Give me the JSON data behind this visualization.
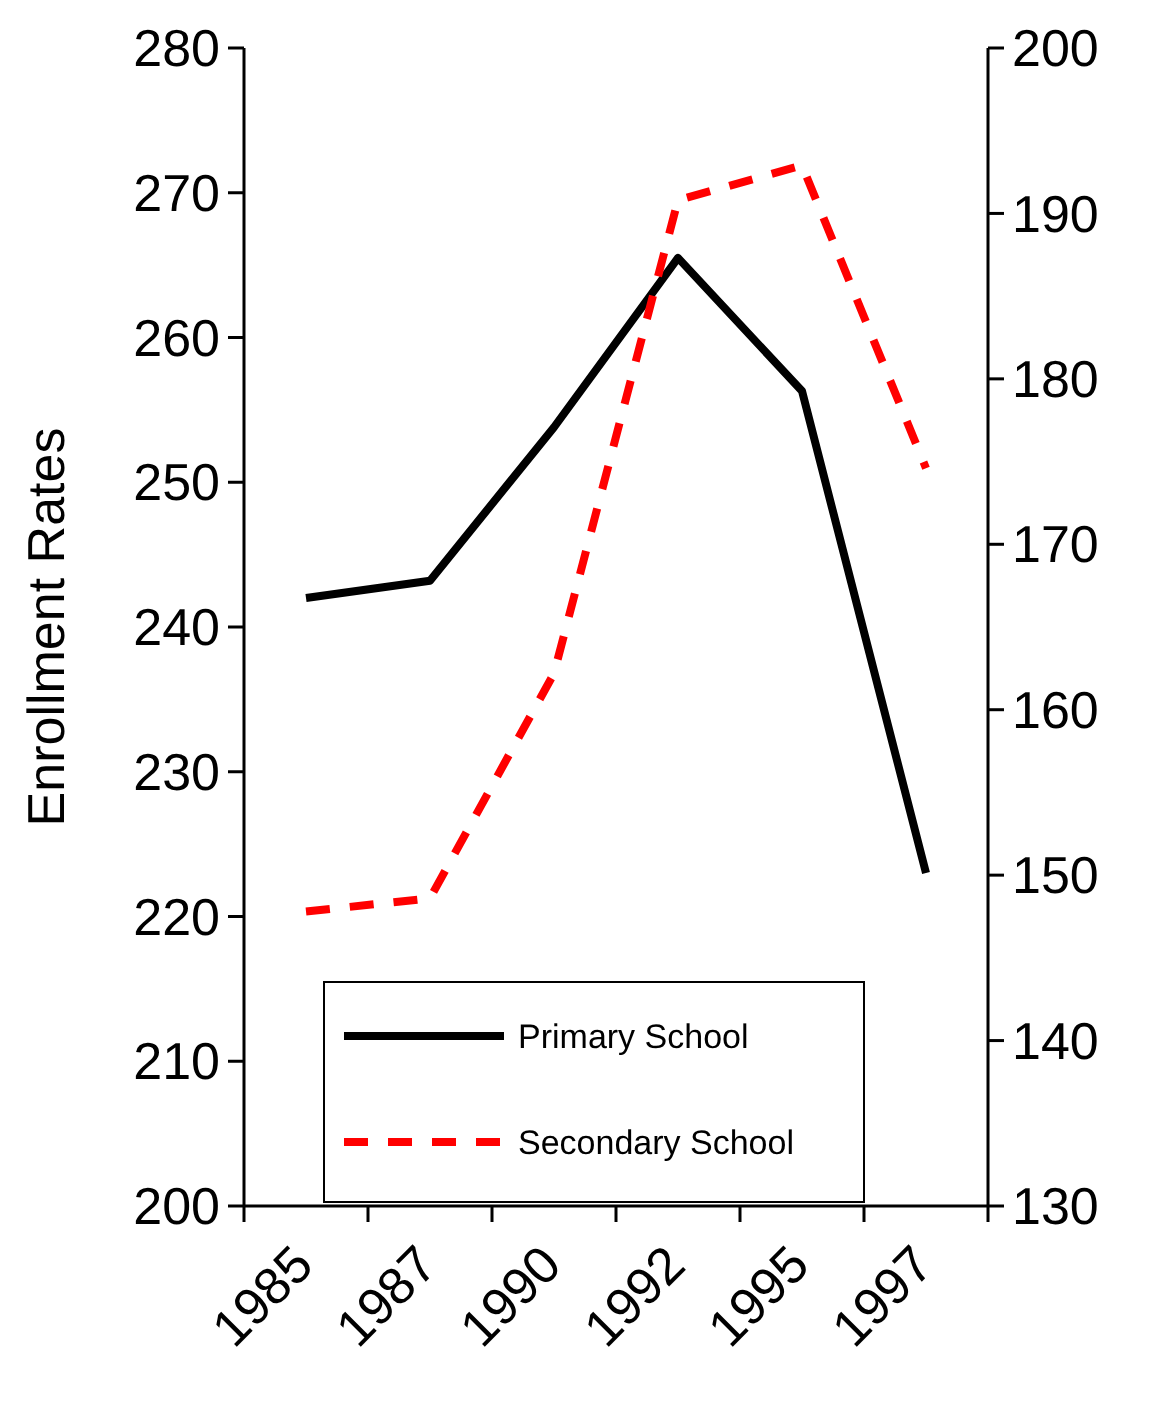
{
  "chart_data": {
    "type": "line",
    "ylabel": "Enrollment Rates",
    "categories": [
      "1985",
      "1987",
      "1990",
      "1992",
      "1995",
      "1997"
    ],
    "ylim": [
      200,
      280
    ],
    "yticks": [
      200,
      210,
      220,
      230,
      240,
      250,
      260,
      270,
      280
    ],
    "y2lim": [
      130,
      200
    ],
    "y2ticks": [
      130,
      140,
      150,
      160,
      170,
      180,
      190,
      200
    ],
    "series": [
      {
        "name": "Primary School",
        "color": "#000000",
        "line_style": "solid",
        "values": [
          242,
          243.2,
          253.8,
          265.5,
          256.3,
          223
        ]
      },
      {
        "name": "Secondary School",
        "color": "#ff0000",
        "line_style": "dashed",
        "axis": "y2",
        "values": [
          147.8,
          148.6,
          162.2,
          190.8,
          192.9,
          174.6
        ]
      }
    ],
    "legend": "bottom",
    "grid": false,
    "marker": "none"
  }
}
